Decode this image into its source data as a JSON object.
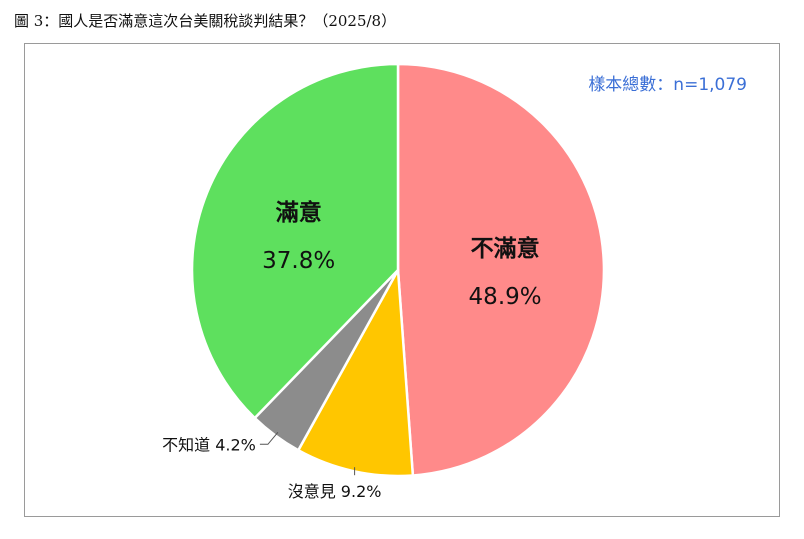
{
  "figure": {
    "title": "圖 3：國人是否滿意這次台美關稅談判結果？（2025/8）"
  },
  "chart_data": {
    "type": "pie",
    "title": "圖 3：國人是否滿意這次台美關稅談判結果？（2025/8）",
    "annotation": "樣本總數：n=1,079",
    "slices": [
      {
        "label": "不滿意",
        "value": 48.9,
        "value_label": "48.9%",
        "color": "#ff8a8a"
      },
      {
        "label": "沒意見",
        "value": 9.2,
        "value_label": "9.2%",
        "color": "#ffc600"
      },
      {
        "label": "不知道",
        "value": 4.2,
        "value_label": "4.2%",
        "color": "#8c8c8c"
      },
      {
        "label": "滿意",
        "value": 37.8,
        "value_label": "37.8%",
        "color": "#5ee05e"
      }
    ],
    "start": "12 o'clock",
    "direction": "clockwise",
    "legend": "none"
  }
}
